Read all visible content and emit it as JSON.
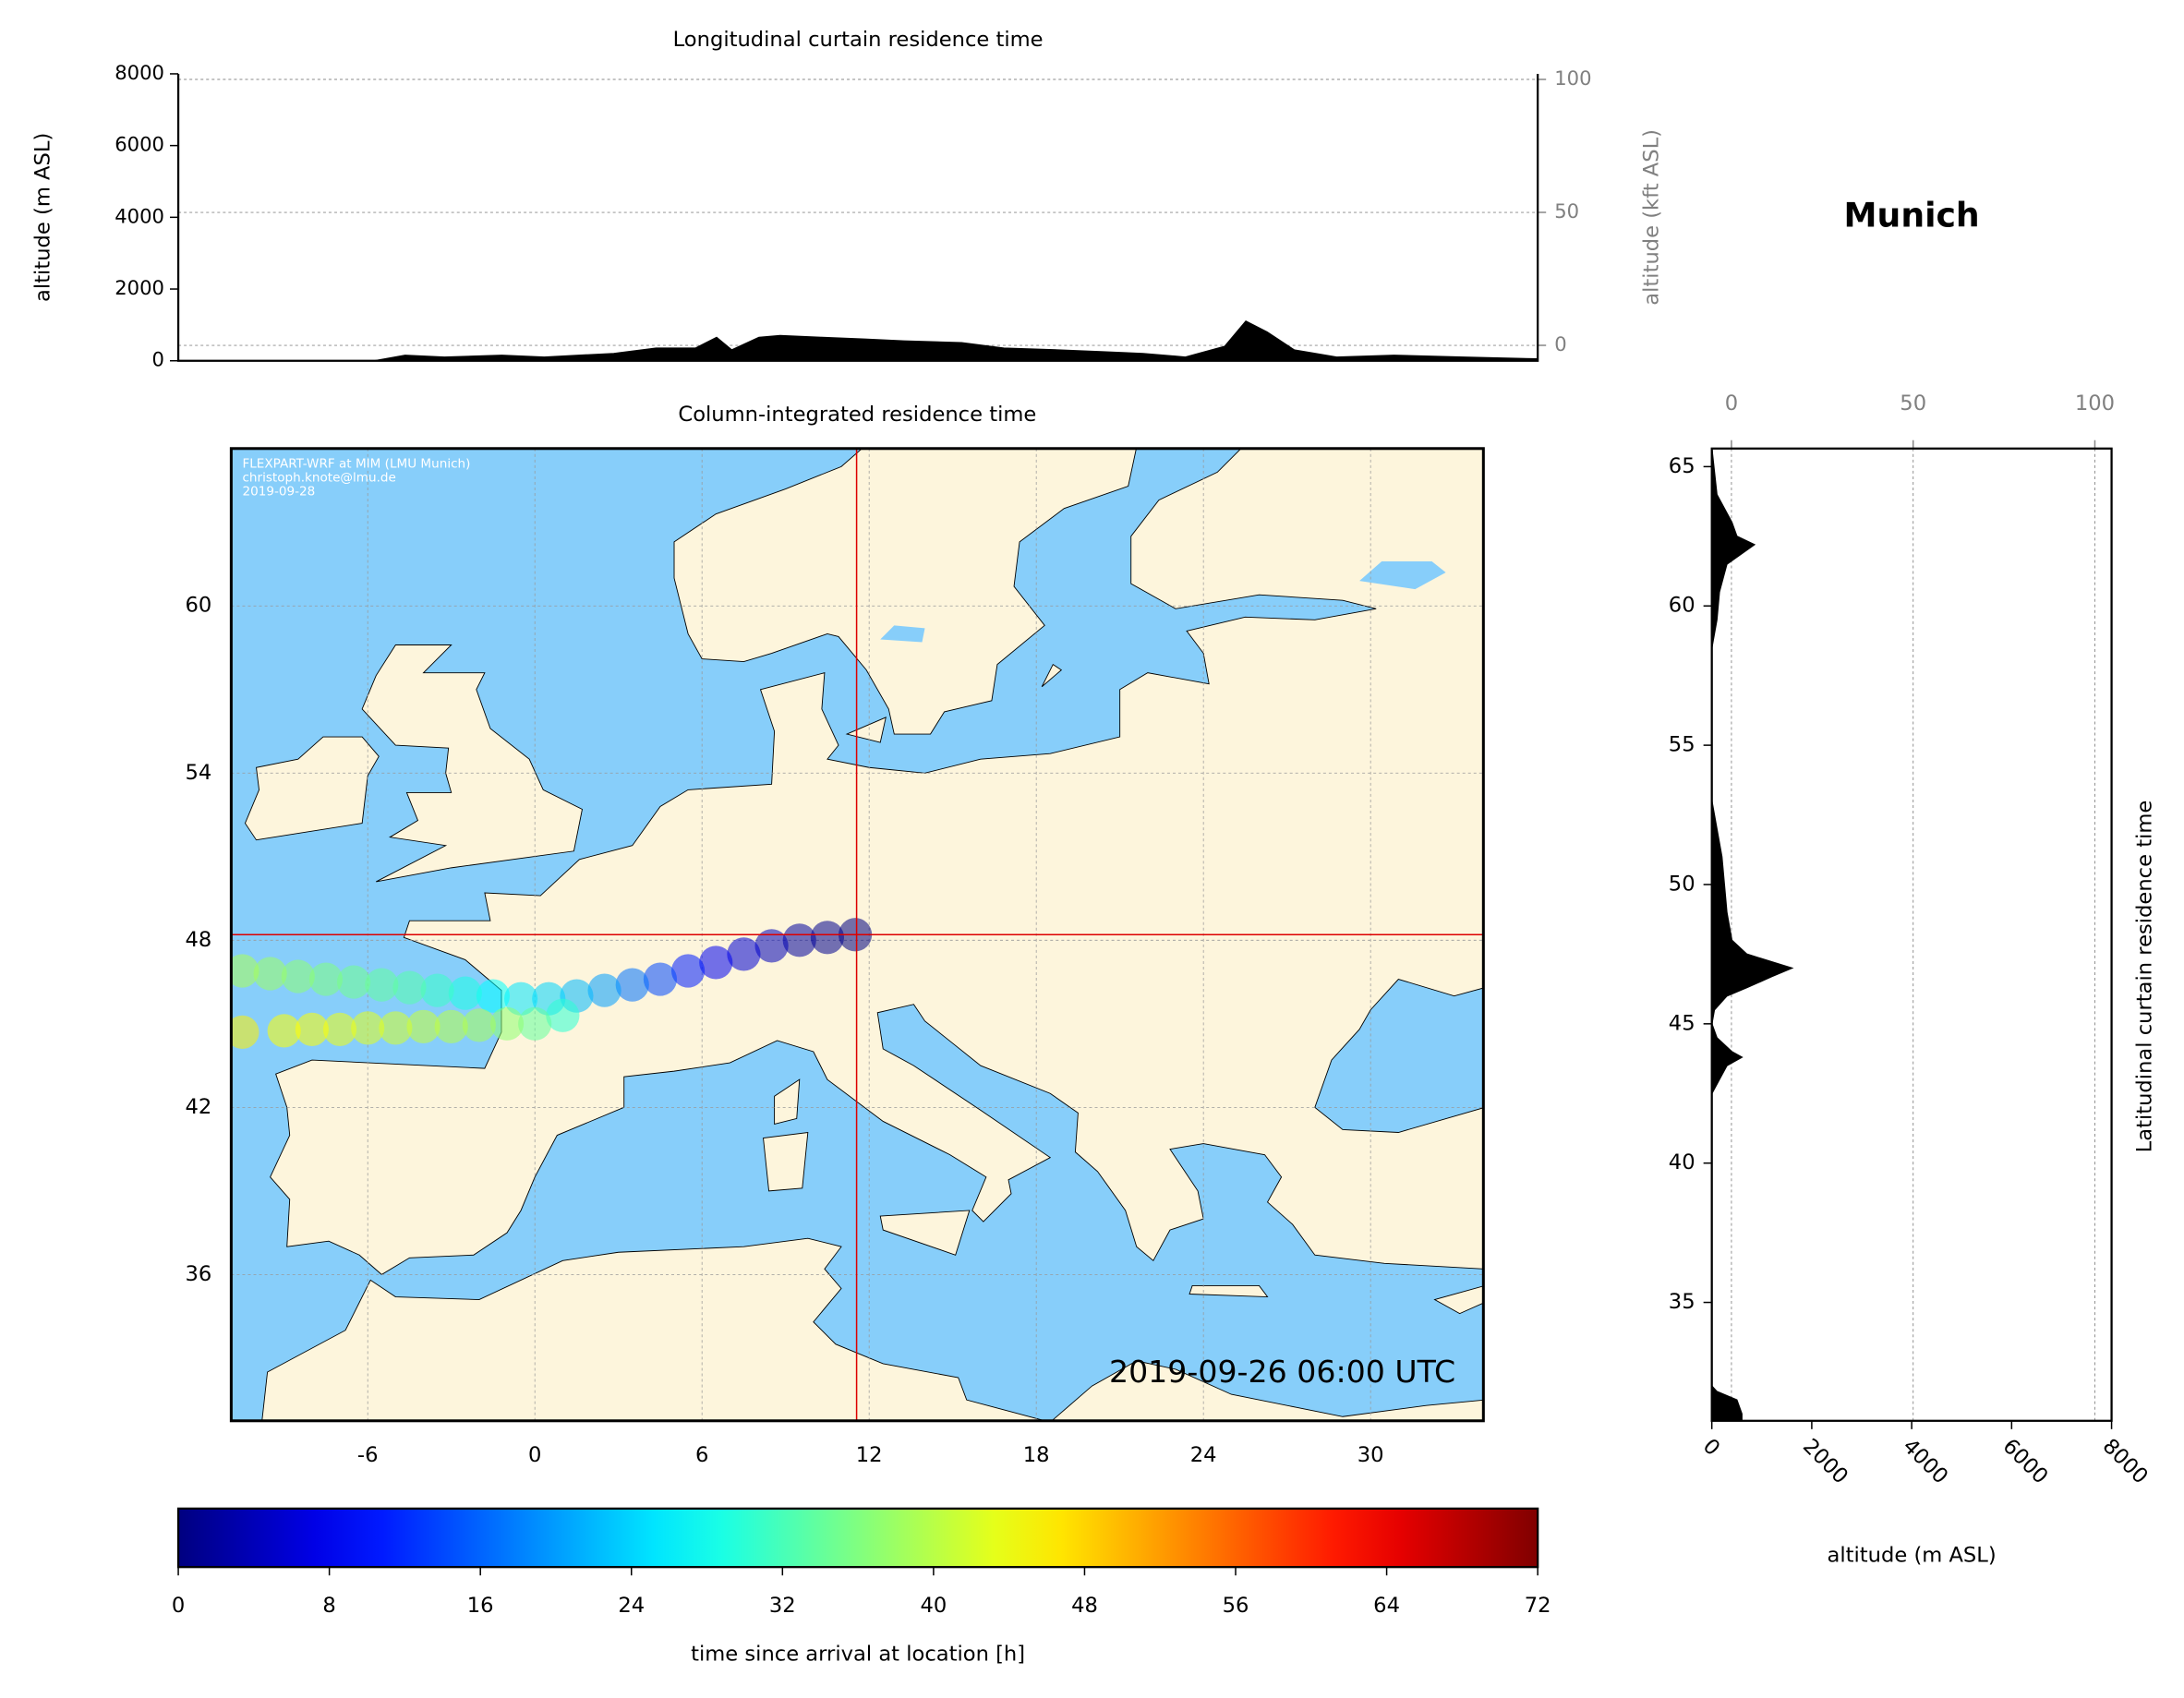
{
  "chart_data": [
    {
      "type": "area",
      "title": "Longitudinal curtain residence time",
      "ylabel": "altitude (m ASL)",
      "y2label": "altitude (kft ASL)",
      "xlim": [
        -10.9,
        34.05
      ],
      "ylim": [
        0,
        8000
      ],
      "yticks": [
        0,
        2000,
        4000,
        6000,
        8000
      ],
      "y2lim": [
        -5.8,
        102.1
      ],
      "y2ticks": [
        0,
        50,
        100
      ],
      "grid": true,
      "color": "#000000",
      "x": [
        -10.9,
        -4.4,
        -3.4,
        -2.1,
        -0.2,
        1.2,
        3.5,
        4.9,
        6.2,
        6.9,
        7.4,
        8.3,
        9,
        10.4,
        11.8,
        13.1,
        15,
        16.4,
        18.2,
        19.6,
        21,
        22.4,
        23.7,
        24.4,
        25.1,
        26,
        27.4,
        29.3,
        31.6,
        34.05
      ],
      "values": [
        0,
        0,
        150,
        100,
        150,
        100,
        200,
        350,
        350,
        650,
        300,
        650,
        700,
        650,
        600,
        550,
        500,
        350,
        300,
        250,
        200,
        100,
        400,
        1100,
        800,
        300,
        100,
        150,
        100,
        50
      ]
    },
    {
      "type": "map",
      "title": "Column-integrated residence time",
      "xlim": [
        -10.9,
        34.05
      ],
      "ylim": [
        30.75,
        65.65
      ],
      "xticks": [
        -6,
        0,
        6,
        12,
        18,
        24,
        30
      ],
      "yticks": [
        36,
        42,
        48,
        54,
        60
      ],
      "grid": true,
      "land_color": "#fdf5dc",
      "sea_color": "#87cefa",
      "credits": [
        "FLEXPART-WRF at MIM (LMU Munich)",
        "christoph.knote@lmu.de",
        "2019-09-28"
      ],
      "timestamp": "2019-09-26 06:00 UTC",
      "crosshair": {
        "x": 11.55,
        "y": 48.2,
        "color": "#dd0000"
      },
      "trajectories": [
        {
          "x": [
            11.5,
            10.5,
            9.5,
            8.5,
            7.5,
            6.5,
            5.5,
            4.5,
            3.5,
            2.5,
            1.5,
            0.5,
            -0.5,
            -1.5,
            -2.5,
            -3.5,
            -4.5,
            -5.5,
            -6.5,
            -7.5,
            -8.5,
            -9.5,
            -10.5
          ],
          "y": [
            48.2,
            48.1,
            48.0,
            47.8,
            47.5,
            47.2,
            46.9,
            46.6,
            46.4,
            46.2,
            46.0,
            45.9,
            45.9,
            46.0,
            46.1,
            46.2,
            46.3,
            46.4,
            46.5,
            46.6,
            46.7,
            46.8,
            46.9
          ],
          "values": [
            0,
            1,
            2,
            4,
            6,
            8,
            11,
            14,
            17,
            20,
            22,
            24,
            25,
            27,
            29,
            31,
            33,
            34,
            35,
            36,
            37,
            38,
            39
          ]
        },
        {
          "x": [
            1.0,
            0.0,
            -1.0,
            -2.0,
            -3.0,
            -4.0,
            -5.0,
            -6.0,
            -7.0,
            -8.0,
            -9.0,
            -10.5
          ],
          "y": [
            45.3,
            45.0,
            45.0,
            44.95,
            44.9,
            44.9,
            44.85,
            44.85,
            44.8,
            44.8,
            44.75,
            44.7
          ],
          "values": [
            30,
            34,
            37,
            39,
            40,
            41,
            42,
            43,
            44,
            45,
            45,
            46
          ]
        }
      ]
    },
    {
      "type": "profile",
      "title": "Munich",
      "ylabel": "Latitudinal curtain residence time",
      "xlabel": "altitude (m ASL)",
      "xlim": [
        0,
        8000
      ],
      "xticks": [
        0,
        2000,
        4000,
        6000,
        8000
      ],
      "x2lim": [
        -5.4,
        104.6
      ],
      "x2ticks": [
        0,
        50,
        100
      ],
      "ylim": [
        30.75,
        65.65
      ],
      "yticks": [
        35,
        40,
        45,
        50,
        55,
        60,
        65
      ],
      "grid": true,
      "color": "#000000",
      "y": [
        65.65,
        64,
        63,
        62.5,
        62.2,
        61.5,
        60.5,
        59.5,
        58.5,
        53,
        52.5,
        51,
        50,
        49,
        48,
        47.5,
        47,
        46.7,
        46.3,
        46,
        45.5,
        45,
        44.5,
        44,
        43.8,
        43.5,
        43,
        42.5,
        32,
        31.8,
        31.5,
        31,
        30.75
      ],
      "values": [
        0,
        100,
        400,
        500,
        850,
        300,
        150,
        100,
        0,
        0,
        50,
        200,
        250,
        300,
        400,
        700,
        1600,
        1200,
        700,
        300,
        50,
        0,
        100,
        400,
        600,
        300,
        150,
        0,
        0,
        100,
        500,
        600,
        600
      ]
    },
    {
      "type": "colorbar",
      "xlabel": "time since arrival at location [h]",
      "colormap": "jet",
      "xlim": [
        0,
        72
      ],
      "xticks": [
        0,
        8,
        16,
        24,
        32,
        40,
        48,
        56,
        64,
        72
      ]
    }
  ]
}
